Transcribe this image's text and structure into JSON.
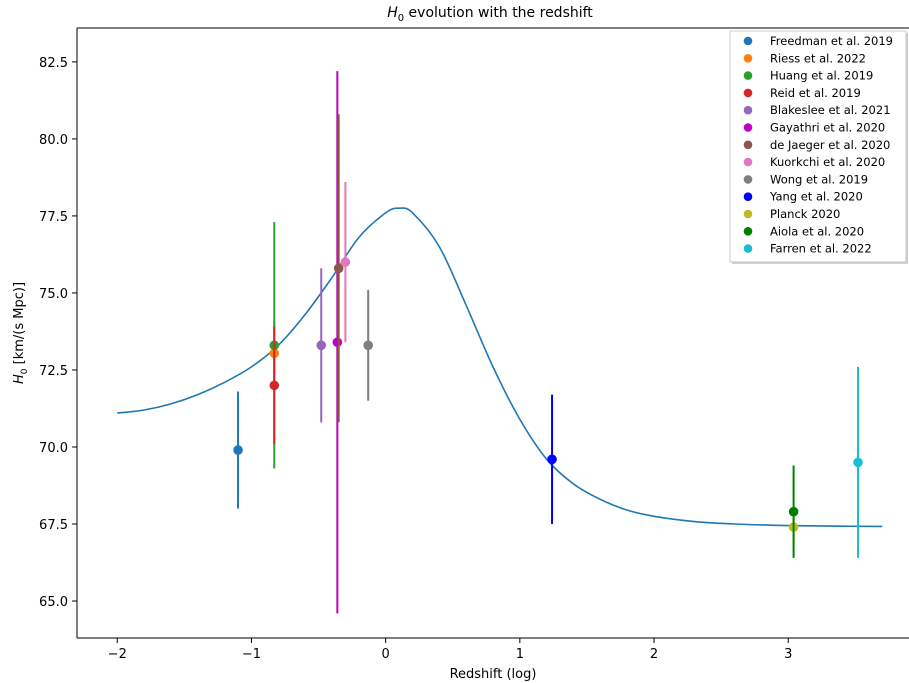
{
  "chart_data": {
    "type": "scatter",
    "title_main": "H",
    "title_sub": "0",
    "title_rest": " evolution with the redshift",
    "xlabel": "Redshift (log)",
    "ylabel_main": "H",
    "ylabel_sub": "0",
    "ylabel_rest": " [km/(s Mpc)]",
    "xlim": [
      -2.3,
      3.9
    ],
    "ylim": [
      63.8,
      83.6
    ],
    "x_ticks": [
      -2,
      -1,
      0,
      1,
      2,
      3
    ],
    "x_tick_labels": [
      "−2",
      "−1",
      "0",
      "1",
      "2",
      "3"
    ],
    "y_ticks": [
      65.0,
      67.5,
      70.0,
      72.5,
      75.0,
      77.5,
      80.0,
      82.5
    ],
    "y_tick_labels": [
      "65.0",
      "67.5",
      "70.0",
      "72.5",
      "75.0",
      "77.5",
      "80.0",
      "82.5"
    ],
    "legend_position": "top-right",
    "grid": false,
    "curve": {
      "color": "#1f77b4",
      "x": [
        -2.0,
        -1.8,
        -1.6,
        -1.4,
        -1.2,
        -1.0,
        -0.8,
        -0.6,
        -0.4,
        -0.2,
        0.0,
        0.1,
        0.2,
        0.4,
        0.6,
        0.8,
        1.0,
        1.2,
        1.4,
        1.6,
        1.8,
        2.0,
        2.3,
        2.6,
        3.0,
        3.4,
        3.7
      ],
      "y": [
        71.1,
        71.2,
        71.4,
        71.7,
        72.1,
        72.6,
        73.3,
        74.3,
        75.5,
        76.8,
        77.6,
        77.75,
        77.6,
        76.5,
        74.6,
        72.6,
        70.9,
        69.6,
        68.8,
        68.3,
        67.95,
        67.75,
        67.58,
        67.5,
        67.45,
        67.43,
        67.42
      ]
    },
    "series": [
      {
        "name": "Freedman et al. 2019",
        "color": "#1f77b4",
        "x": -1.1,
        "y": 69.9,
        "err_low": 1.9,
        "err_high": 1.9
      },
      {
        "name": "Riess et al. 2022",
        "color": "#ff7f0e",
        "x": -0.83,
        "y": 73.04,
        "err_low": 1.04,
        "err_high": 1.04
      },
      {
        "name": "Huang et al. 2019",
        "color": "#2ca02c",
        "x": -0.83,
        "y": 73.3,
        "err_low": 4.0,
        "err_high": 4.0
      },
      {
        "name": "Reid et al. 2019",
        "color": "#d62728",
        "x": -0.83,
        "y": 72.0,
        "err_low": 1.9,
        "err_high": 1.9
      },
      {
        "name": "Blakeslee et al. 2021",
        "color": "#9467bd",
        "x": -0.48,
        "y": 73.3,
        "err_low": 2.5,
        "err_high": 2.5
      },
      {
        "name": "Gayathri et al. 2020",
        "color": "#c000c0",
        "x": -0.36,
        "y": 73.4,
        "err_low": 8.8,
        "err_high": 8.8
      },
      {
        "name": "de Jaeger et al. 2020",
        "color": "#8c564b",
        "x": -0.35,
        "y": 75.8,
        "err_low": 5.0,
        "err_high": 5.0
      },
      {
        "name": "Kuorkchi et al. 2020",
        "color": "#e377c2",
        "x": -0.3,
        "y": 76.0,
        "err_low": 2.6,
        "err_high": 2.6
      },
      {
        "name": "Wong et al. 2019",
        "color": "#7f7f7f",
        "x": -0.13,
        "y": 73.3,
        "err_low": 1.8,
        "err_high": 1.8
      },
      {
        "name": "Yang et al. 2020",
        "color": "#0000ff",
        "x": 1.24,
        "y": 69.6,
        "err_low": 2.1,
        "err_high": 2.1
      },
      {
        "name": "Planck 2020",
        "color": "#bcbd22",
        "x": 3.04,
        "y": 67.4,
        "err_low": 0.5,
        "err_high": 0.5
      },
      {
        "name": "Aiola et al. 2020",
        "color": "#008000",
        "x": 3.04,
        "y": 67.9,
        "err_low": 1.5,
        "err_high": 1.5
      },
      {
        "name": "Farren et al. 2022",
        "color": "#17becf",
        "x": 3.52,
        "y": 69.5,
        "err_low": 3.1,
        "err_high": 3.1
      }
    ]
  }
}
